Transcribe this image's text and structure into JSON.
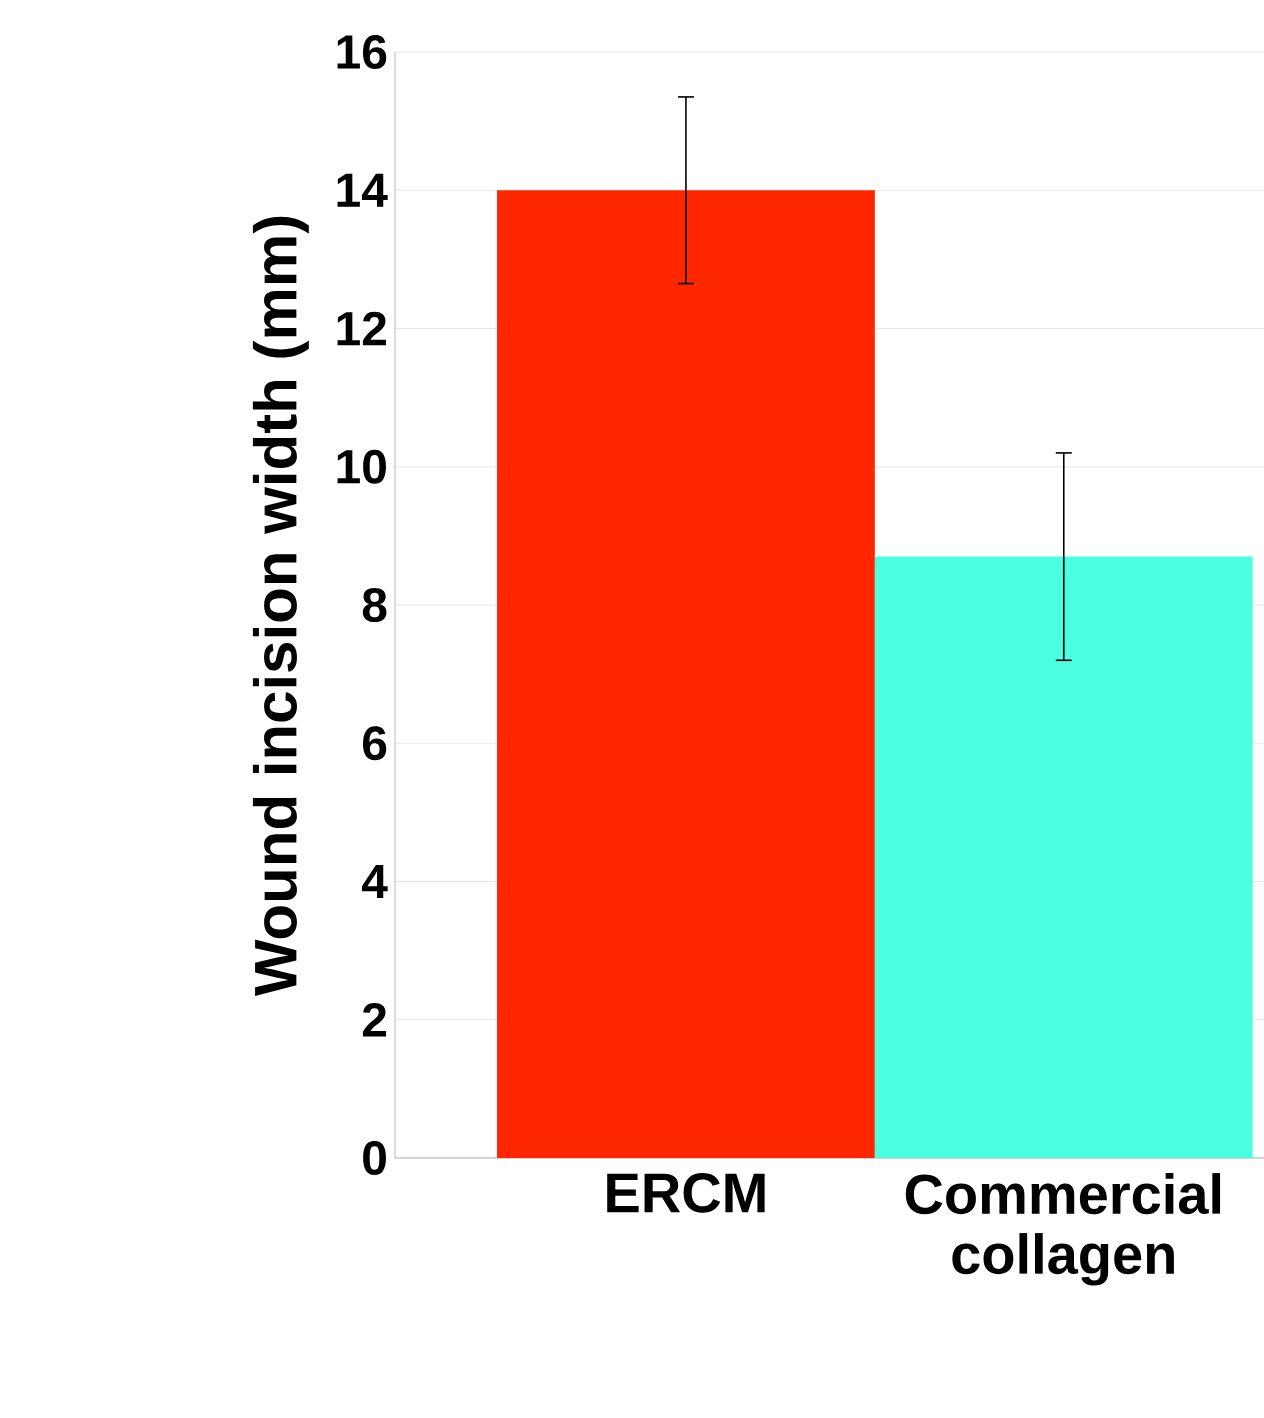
{
  "chart_data": {
    "type": "bar",
    "ylabel": "Wound incision width (mm)",
    "categories": [
      "ERCM",
      "Commercial collagen"
    ],
    "values": [
      14.0,
      8.7
    ],
    "errors": [
      1.35,
      1.5
    ],
    "colors": [
      "#ff2600",
      "#4cffe3"
    ],
    "ylim": [
      0,
      16
    ],
    "yticks": [
      0,
      2,
      4,
      6,
      8,
      10,
      12,
      14,
      16
    ],
    "grid": "y"
  }
}
